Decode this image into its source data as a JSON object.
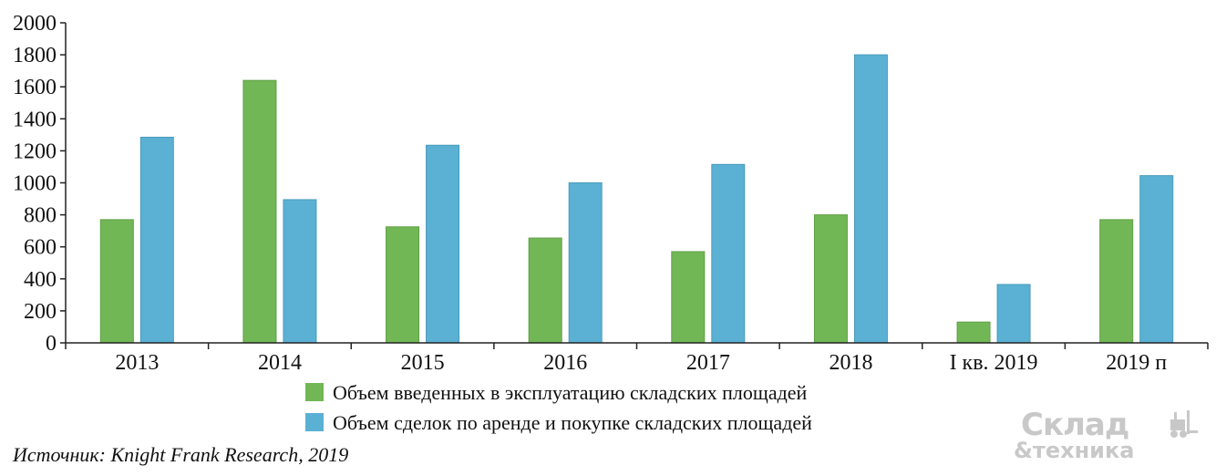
{
  "chart_data": {
    "type": "bar",
    "categories": [
      "2013",
      "2014",
      "2015",
      "2016",
      "2017",
      "2018",
      "I кв. 2019",
      "2019 п"
    ],
    "series": [
      {
        "name": "Объем введенных в эксплуатацию складских площадей",
        "color": "#72b755",
        "values": [
          770,
          1640,
          725,
          655,
          570,
          800,
          130,
          770
        ]
      },
      {
        "name": "Объем сделок по аренде и покупке складских площадей",
        "color": "#5ab1d3",
        "values": [
          1285,
          895,
          1235,
          1000,
          1115,
          1800,
          365,
          1045
        ]
      }
    ],
    "ylim": [
      0,
      2000
    ],
    "yticks": [
      "0",
      "200",
      "400",
      "600",
      "800",
      "1000",
      "1200",
      "1400",
      "1600",
      "1800",
      "2000"
    ],
    "legend_position": "bottom-center",
    "grid": false
  },
  "source_text": "Источник: Knight Frank Research, 2019",
  "watermark": {
    "line1": "Склад",
    "line2": "&техника",
    "icon": "forklift-icon"
  }
}
